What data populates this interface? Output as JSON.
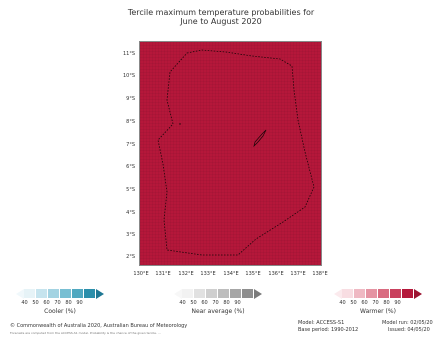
{
  "title": {
    "line1": "Tercile maximum temperature probabilities for",
    "line2": "June to August 2020"
  },
  "map": {
    "fill_color": "#b5173a",
    "lat_labels": [
      "11°S",
      "10°S",
      "9°S",
      "8°S",
      "7°S",
      "6°S",
      "5°S",
      "4°S",
      "3°S",
      "2°S"
    ],
    "lon_labels": [
      "130°E",
      "131°E",
      "132°E",
      "133°E",
      "134°E",
      "135°E",
      "136°E",
      "137°E",
      "138°E"
    ]
  },
  "legends": {
    "cooler": {
      "label": "Cooler (%)",
      "ticks": [
        "40",
        "50",
        "60",
        "70",
        "80",
        "90"
      ],
      "colors": [
        "#e6f3f7",
        "#c6e4ee",
        "#a3d3e2",
        "#78bfd3",
        "#4fa8c0",
        "#2b8fab"
      ]
    },
    "near": {
      "label": "Near average (%)",
      "ticks": [
        "40",
        "50",
        "60",
        "70",
        "80",
        "90"
      ],
      "colors": [
        "#f2f2f2",
        "#e1e1e1",
        "#cfcfcf",
        "#bdbdbd",
        "#a6a6a6",
        "#8e8e8e"
      ]
    },
    "warmer": {
      "label": "Warmer (%)",
      "ticks": [
        "40",
        "50",
        "60",
        "70",
        "80",
        "90"
      ],
      "colors": [
        "#f8dde2",
        "#efb9c3",
        "#e594a3",
        "#d96b80",
        "#c9415e",
        "#b5173a"
      ]
    }
  },
  "footer": {
    "copyright": "© Commonwealth of Australia 2020, Australian Bureau of Meteorology",
    "footnote": "Forecasts are computed from the ACCESS-S1 model. Probability is the chance of the given tercile. ...",
    "model": "Model: ACCESS-S1",
    "base_period": "Base period: 1990-2012",
    "model_run": "Model run: 02/05/20",
    "issued": "Issued: 04/05/20"
  }
}
